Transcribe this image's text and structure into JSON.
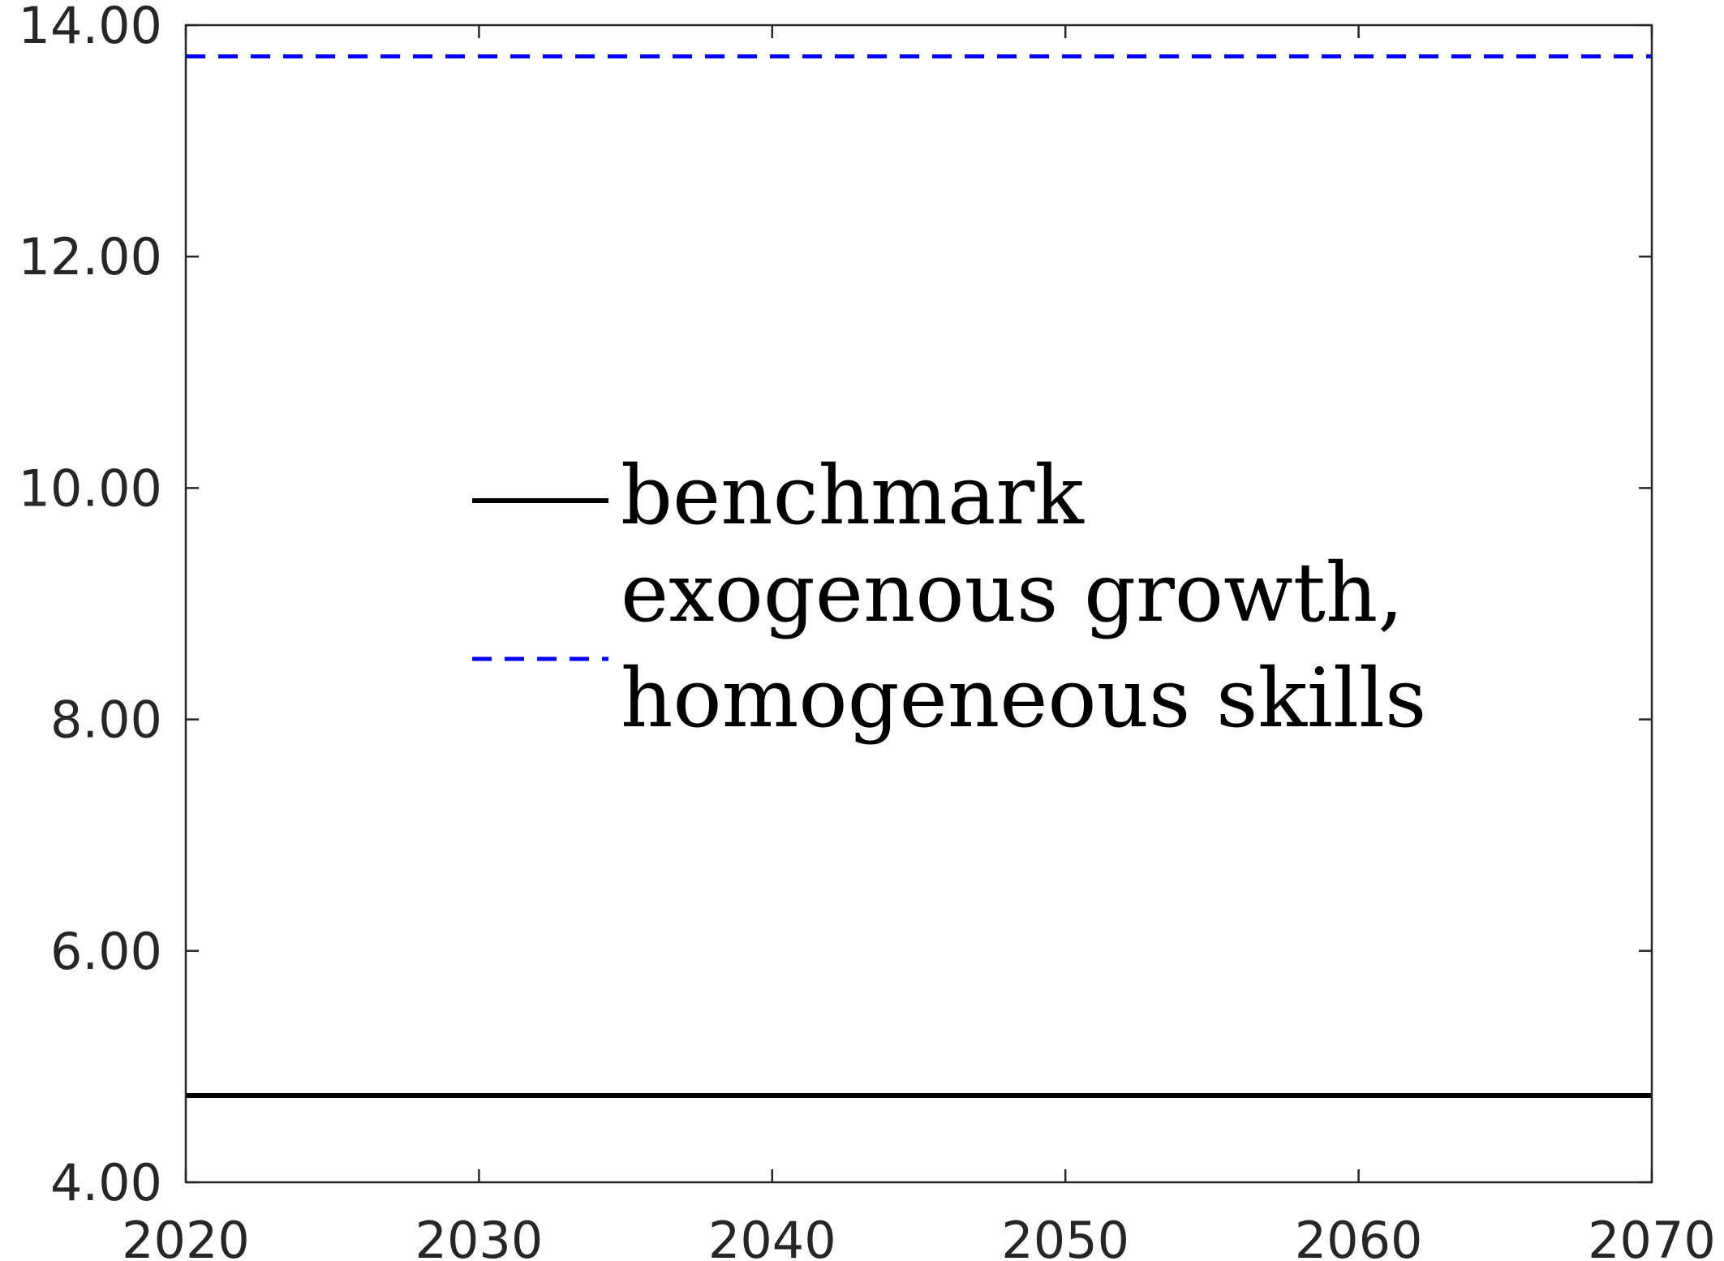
{
  "chart_data": {
    "type": "line",
    "x": [
      2020,
      2070
    ],
    "series": [
      {
        "name": "benchmark",
        "values": [
          4.75,
          4.75
        ],
        "color": "#000000",
        "style": "solid"
      },
      {
        "name": "exogenous growth, homogeneous skills",
        "values": [
          13.73,
          13.73
        ],
        "color": "#0000ff",
        "style": "dashed"
      }
    ],
    "xlim": [
      2020,
      2070
    ],
    "ylim": [
      4,
      14
    ],
    "xticks": [
      2020,
      2030,
      2040,
      2050,
      2060,
      2070
    ],
    "yticks": [
      4,
      6,
      8,
      10,
      12,
      14
    ],
    "xtick_labels": [
      "2020",
      "2030",
      "2040",
      "2050",
      "2060",
      "2070"
    ],
    "ytick_labels": [
      "4.00",
      "6.00",
      "8.00",
      "10.00",
      "12.00",
      "14.00"
    ],
    "title": "",
    "xlabel": "",
    "ylabel": "",
    "grid": false,
    "legend": {
      "placement": "center-left",
      "entries": [
        {
          "lines": [
            "benchmark"
          ]
        },
        {
          "lines": [
            "exogenous growth,",
            "homogeneous skills"
          ]
        }
      ]
    }
  }
}
